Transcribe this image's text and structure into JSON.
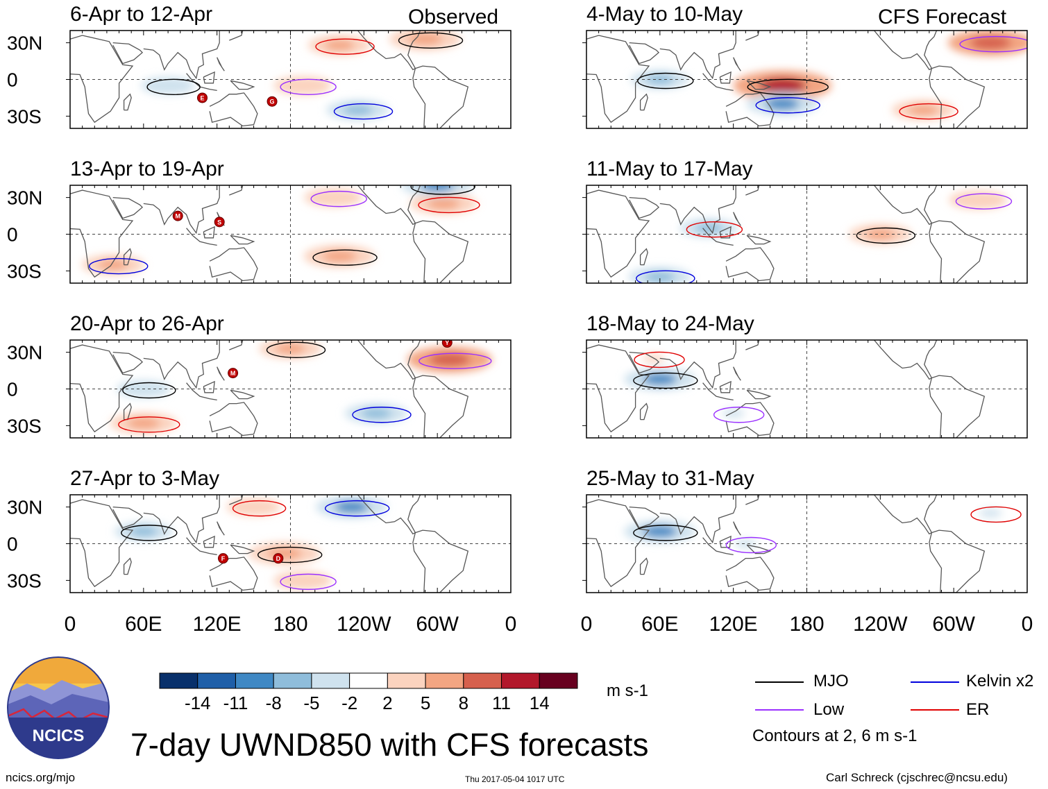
{
  "title": "7-day UWND850 with CFS forecasts",
  "footer": {
    "left": "ncics.org/mjo",
    "center": "Thu 2017-05-04 1017 UTC",
    "right": "Carl Schreck (cjschrec@ncsu.edu)"
  },
  "logo": {
    "text": "NCICS"
  },
  "column_labels": {
    "observed": "Observed",
    "forecast": "CFS Forecast"
  },
  "lat_labels": [
    "30N",
    "0",
    "30S"
  ],
  "lon_labels": [
    "0",
    "60E",
    "120E",
    "180",
    "120W",
    "60W",
    "0"
  ],
  "colorbar": {
    "unit": "m s-1",
    "ticks": [
      "-14",
      "-11",
      "-8",
      "-5",
      "-2",
      "2",
      "5",
      "8",
      "11",
      "14"
    ],
    "colors": [
      "#08306b",
      "#1f5fa8",
      "#3f88c4",
      "#8fbddb",
      "#cfe2ee",
      "#ffffff",
      "#fbd3bf",
      "#f3a582",
      "#d6604d",
      "#b2182b",
      "#67001f"
    ]
  },
  "legend": {
    "items": [
      {
        "label": "MJO",
        "color": "#000000"
      },
      {
        "label": "Kelvin x2",
        "color": "#0000dd"
      },
      {
        "label": "Low",
        "color": "#9b30ff"
      },
      {
        "label": "ER",
        "color": "#e00000"
      }
    ],
    "note": "Contours at 2, 6 m s-1"
  },
  "chart_data": {
    "type": "heatmap",
    "variable": "850-hPa zonal wind anomaly",
    "units": "m s-1",
    "lat_range": [
      -40,
      40
    ],
    "lon_range": [
      0,
      360
    ],
    "panels": [
      {
        "title": "6-Apr to 12-Apr",
        "source": "observed",
        "anomalies": [
          {
            "lon": 290,
            "lat": 33,
            "value": 8
          },
          {
            "lon": 190,
            "lat": -5,
            "value": 5
          },
          {
            "lon": 220,
            "lat": 28,
            "value": 6
          },
          {
            "lon": 235,
            "lat": -25,
            "value": -6
          },
          {
            "lon": 80,
            "lat": -5,
            "value": -4
          }
        ],
        "storm_markers": [
          {
            "letter": "E",
            "lon": 108,
            "lat": -15
          },
          {
            "letter": "G",
            "lon": 165,
            "lat": -18
          }
        ]
      },
      {
        "title": "13-Apr to 19-Apr",
        "source": "observed",
        "anomalies": [
          {
            "lon": 220,
            "lat": -18,
            "value": 8
          },
          {
            "lon": 215,
            "lat": 30,
            "value": 5
          },
          {
            "lon": 305,
            "lat": 25,
            "value": 7
          },
          {
            "lon": 35,
            "lat": -25,
            "value": 6
          },
          {
            "lon": 300,
            "lat": 40,
            "value": -8
          }
        ],
        "storm_markers": [
          {
            "letter": "M",
            "lon": 88,
            "lat": 15
          },
          {
            "letter": "S",
            "lon": 122,
            "lat": 10
          }
        ]
      },
      {
        "title": "20-Apr to 26-Apr",
        "source": "observed",
        "anomalies": [
          {
            "lon": 180,
            "lat": 33,
            "value": 6
          },
          {
            "lon": 310,
            "lat": 24,
            "value": 11
          },
          {
            "lon": 60,
            "lat": -28,
            "value": 7
          },
          {
            "lon": 250,
            "lat": -20,
            "value": -6
          },
          {
            "lon": 60,
            "lat": 0,
            "value": -4
          }
        ],
        "storm_markers": [
          {
            "letter": "M",
            "lon": 133,
            "lat": 13
          },
          {
            "letter": "Y",
            "lon": 308,
            "lat": 38
          }
        ]
      },
      {
        "title": "27-Apr to 3-May",
        "source": "observed",
        "anomalies": [
          {
            "lon": 175,
            "lat": -8,
            "value": 8
          },
          {
            "lon": 190,
            "lat": -30,
            "value": 5
          },
          {
            "lon": 150,
            "lat": 30,
            "value": 4
          },
          {
            "lon": 230,
            "lat": 30,
            "value": -8
          },
          {
            "lon": 60,
            "lat": 10,
            "value": -5
          }
        ],
        "storm_markers": [
          {
            "letter": "F",
            "lon": 125,
            "lat": -12
          },
          {
            "letter": "D",
            "lon": 170,
            "lat": -12
          }
        ]
      },
      {
        "title": "4-May to 10-May",
        "source": "forecast",
        "anomalies": [
          {
            "lon": 160,
            "lat": -5,
            "value": 14
          },
          {
            "lon": 330,
            "lat": 30,
            "value": 11
          },
          {
            "lon": 275,
            "lat": -25,
            "value": 6
          },
          {
            "lon": 160,
            "lat": -20,
            "value": -8
          },
          {
            "lon": 60,
            "lat": 0,
            "value": -5
          }
        ],
        "storm_markers": []
      },
      {
        "title": "11-May to 17-May",
        "source": "forecast",
        "anomalies": [
          {
            "lon": 240,
            "lat": 0,
            "value": 6
          },
          {
            "lon": 320,
            "lat": 28,
            "value": 5
          },
          {
            "lon": 100,
            "lat": 5,
            "value": -5
          },
          {
            "lon": 60,
            "lat": -35,
            "value": -6
          }
        ],
        "storm_markers": []
      },
      {
        "title": "18-May to 24-May",
        "source": "forecast",
        "anomalies": [
          {
            "lon": 60,
            "lat": 8,
            "value": -8
          },
          {
            "lon": 120,
            "lat": -20,
            "value": -3
          },
          {
            "lon": 55,
            "lat": 25,
            "value": 3
          }
        ],
        "storm_markers": []
      },
      {
        "title": "25-May to 31-May",
        "source": "forecast",
        "anomalies": [
          {
            "lon": 60,
            "lat": 10,
            "value": -8
          },
          {
            "lon": 130,
            "lat": 0,
            "value": -3
          },
          {
            "lon": 330,
            "lat": 25,
            "value": -3
          }
        ],
        "storm_markers": []
      }
    ]
  }
}
